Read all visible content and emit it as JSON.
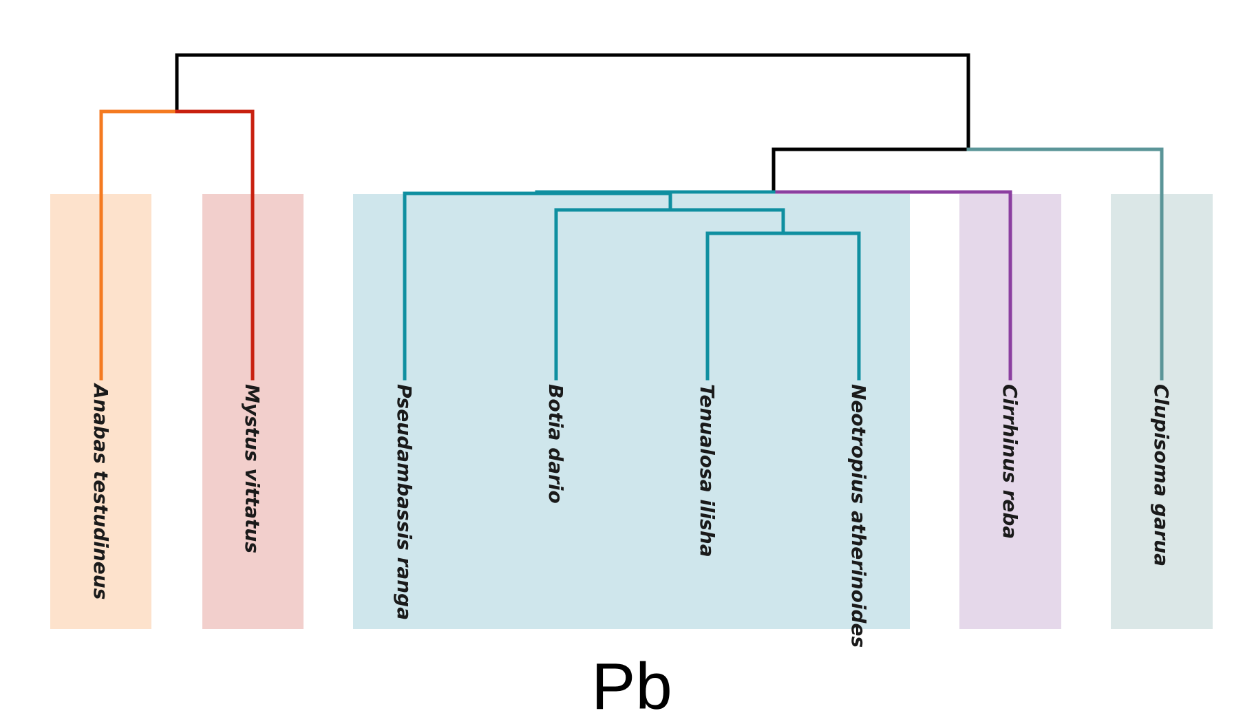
{
  "caption": "Pb",
  "leaves": [
    {
      "id": "anabas",
      "label": "Anabas testudineus",
      "group": "g1"
    },
    {
      "id": "mystus",
      "label": "Mystus vittatus",
      "group": "g2"
    },
    {
      "id": "pseudambassis",
      "label": "Pseudambassis ranga",
      "group": "g3"
    },
    {
      "id": "botia",
      "label": "Botia dario",
      "group": "g3"
    },
    {
      "id": "tenualosa",
      "label": "Tenualosa ilisha",
      "group": "g3"
    },
    {
      "id": "neotropius",
      "label": "Neotropius atherinoides",
      "group": "g3"
    },
    {
      "id": "cirrhinus",
      "label": "Cirrhinus reba",
      "group": "g4"
    },
    {
      "id": "clupisoma",
      "label": "Clupisoma garua",
      "group": "g5"
    }
  ],
  "groups": [
    {
      "id": "g1",
      "fill": "#fde2cc",
      "branch_color": "#f47a20"
    },
    {
      "id": "g2",
      "fill": "#f2cfcc",
      "branch_color": "#c8200f"
    },
    {
      "id": "g3",
      "fill": "#cfe6ec",
      "branch_color": "#0f8fa0"
    },
    {
      "id": "g4",
      "fill": "#e5d8ea",
      "branch_color": "#8b3fa0"
    },
    {
      "id": "g5",
      "fill": "#dbe7e7",
      "branch_color": "#5b9598"
    }
  ],
  "root_color": "#000000"
}
